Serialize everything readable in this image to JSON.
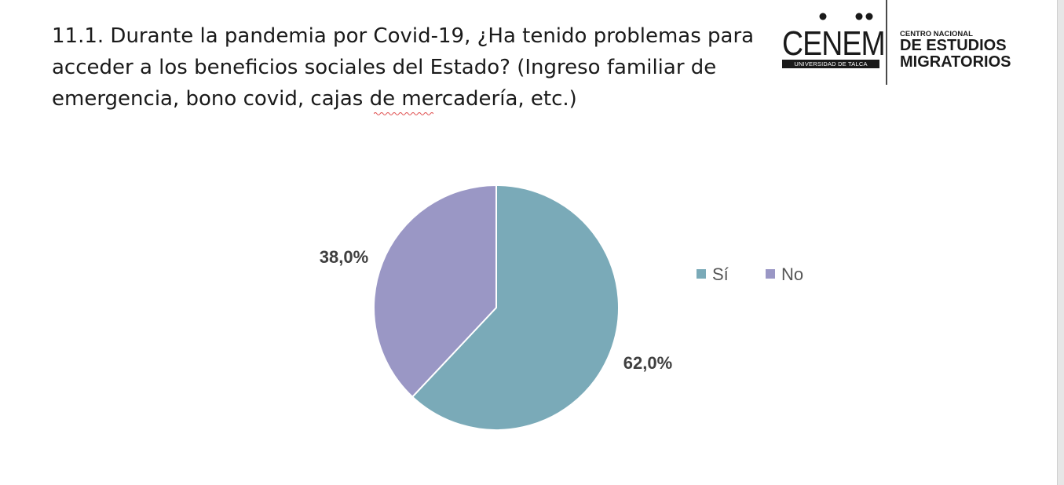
{
  "title": "11.1. Durante la pandemia por Covid-19, ¿Ha tenido problemas para acceder a los beneficios sociales del Estado? (Ingreso familiar de emergencia, bono covid, cajas de mercadería, etc.)",
  "logo": {
    "wordmark": "CENEM",
    "band_text": "UNIVERSIDAD DE TALCA",
    "line1": "CENTRO NACIONAL",
    "line2": "DE ESTUDIOS",
    "line3": "MIGRATORIOS"
  },
  "chart_data": {
    "type": "pie",
    "categories": [
      "Sí",
      "No"
    ],
    "values": [
      62.0,
      38.0
    ],
    "labels": [
      "62,0%",
      "38,0%"
    ],
    "colors": [
      "#7aaab8",
      "#9a97c5"
    ],
    "legend_position": "right",
    "start_angle": "top, clockwise"
  }
}
